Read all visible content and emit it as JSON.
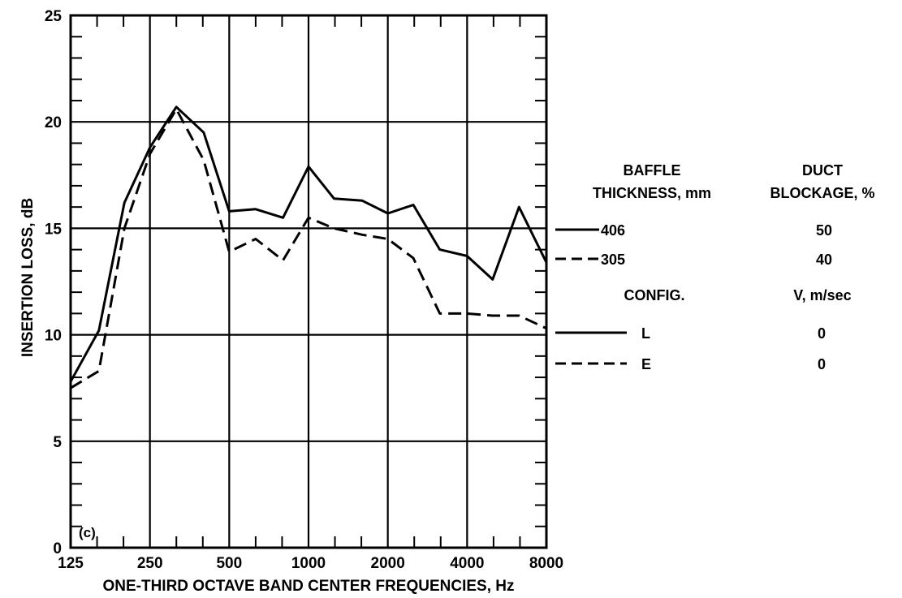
{
  "chart_data": {
    "type": "line",
    "xlabel": "ONE-THIRD OCTAVE BAND CENTER FREQUENCIES, Hz",
    "ylabel": "INSERTION LOSS, dB",
    "x_scale": "log2",
    "xlim": [
      125,
      8000
    ],
    "ylim": [
      0,
      25
    ],
    "x_ticks": [
      125,
      250,
      500,
      1000,
      2000,
      4000,
      8000
    ],
    "x_tick_labels": [
      "125",
      "250",
      "500",
      "1000",
      "2000",
      "4000",
      "8000"
    ],
    "y_ticks": [
      0,
      5,
      10,
      15,
      20,
      25
    ],
    "y_tick_labels": [
      "0",
      "5",
      "10",
      "15",
      "20",
      "25"
    ],
    "grid": true,
    "panel_label": "(c)",
    "x": [
      125,
      160,
      200,
      250,
      315,
      400,
      500,
      630,
      800,
      1000,
      1250,
      1600,
      2000,
      2500,
      3150,
      4000,
      5000,
      6300,
      8000
    ],
    "series": [
      {
        "legend": "solid",
        "values": [
          7.8,
          10.2,
          16.2,
          18.8,
          20.7,
          19.5,
          15.8,
          15.9,
          15.5,
          17.9,
          16.4,
          16.3,
          15.7,
          16.1,
          14.0,
          13.7,
          12.6,
          16.0,
          13.4
        ]
      },
      {
        "legend": "dashed",
        "values": [
          7.5,
          8.3,
          15.0,
          18.5,
          20.6,
          18.2,
          13.9,
          14.5,
          13.5,
          15.5,
          15.0,
          14.7,
          14.5,
          13.6,
          11.0,
          11.0,
          10.9,
          10.9,
          10.3
        ]
      }
    ]
  },
  "legend": {
    "col1_header_line1": "BAFFLE",
    "col1_header_line2": "THICKNESS, mm",
    "col2_header_line1": "DUCT",
    "col2_header_line2": "BLOCKAGE, %",
    "row1_thickness": "406",
    "row1_blockage": "50",
    "row2_thickness": "305",
    "row2_blockage": "40",
    "col1_header2": "CONFIG.",
    "col2_header2": "V, m/sec",
    "row3_config": "L",
    "row3_velocity": "0",
    "row4_config": "E",
    "row4_velocity": "0"
  }
}
